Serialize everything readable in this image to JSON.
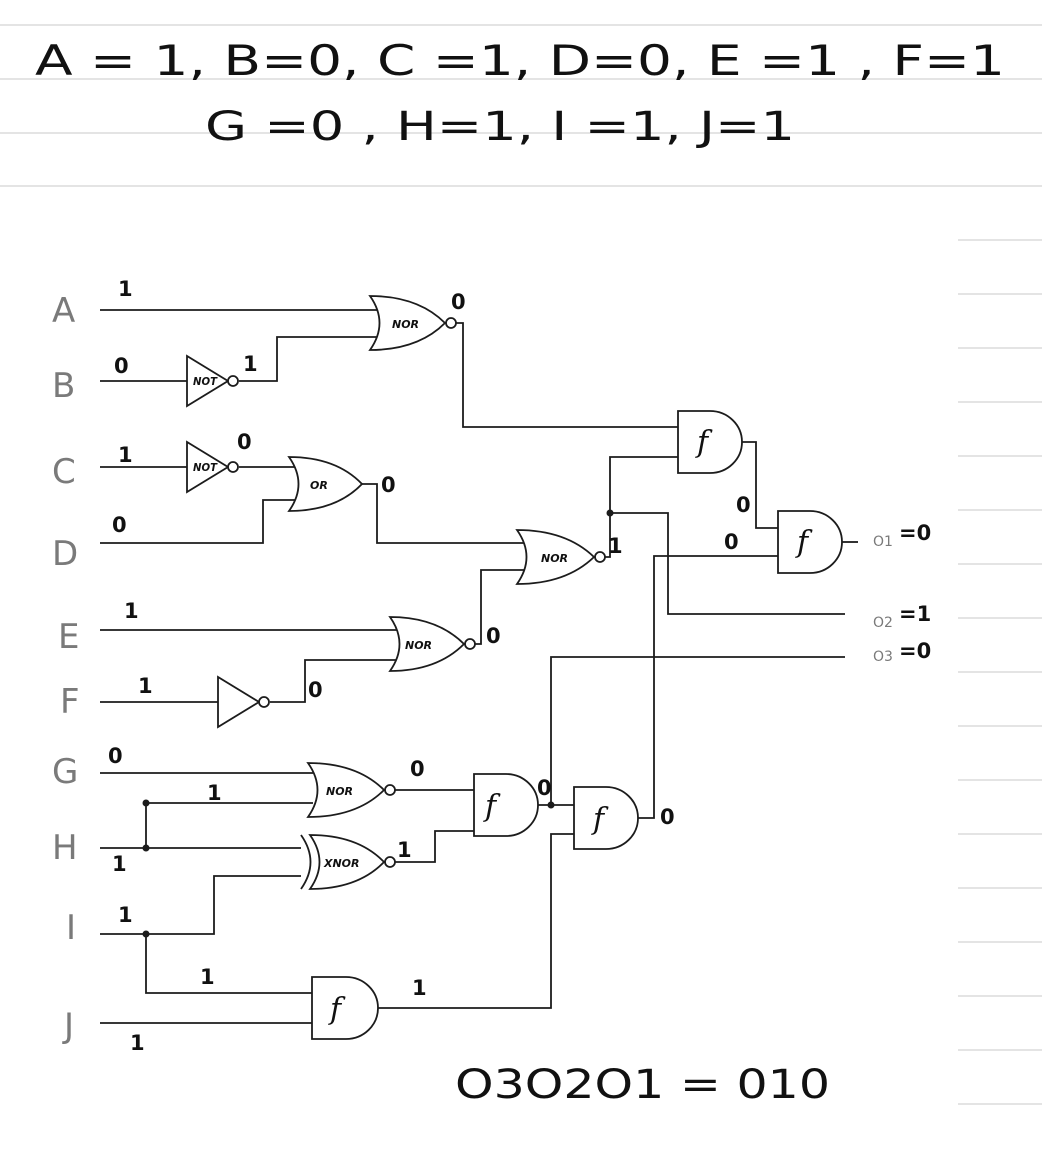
{
  "header": {
    "line1": "A = 1, B=0, C =1, D=0, E =1 , F=1",
    "line2": "G =0 , H=1, I =1, J=1"
  },
  "colors": {
    "ink": "#111111",
    "wire": "#1c1c1c",
    "label_gray": "#7a7a7a",
    "ruled_line": "#d4d4d4"
  },
  "inputs": {
    "A": {
      "name": "A",
      "value": "1"
    },
    "B": {
      "name": "B",
      "value": "0"
    },
    "C": {
      "name": "C",
      "value": "1"
    },
    "D": {
      "name": "D",
      "value": "0"
    },
    "E": {
      "name": "E",
      "value": "1"
    },
    "F": {
      "name": "F",
      "value": "1"
    },
    "G": {
      "name": "G",
      "value": "0"
    },
    "H": {
      "name": "H",
      "value": "1"
    },
    "I": {
      "name": "I",
      "value": "1"
    },
    "J": {
      "name": "J",
      "value": "1"
    }
  },
  "gates": {
    "not_b": {
      "tag": "NOT",
      "out": "1"
    },
    "not_c": {
      "tag": "NOT",
      "out": "0"
    },
    "not_f": {
      "tag": "",
      "out": "0"
    },
    "nor_ab": {
      "tag": "NOR",
      "out": "0"
    },
    "or_cd": {
      "tag": "OR",
      "out": "0"
    },
    "nor_ef": {
      "tag": "NOR",
      "out": "0"
    },
    "nor_mid": {
      "tag": "NOR",
      "out": "1"
    },
    "and_top": {
      "tag": "f",
      "out": "0"
    },
    "and_o1": {
      "tag": "f",
      "in_b": "0"
    },
    "nor_gh": {
      "tag": "NOR",
      "out": "0"
    },
    "xnor_hi": {
      "tag": "XNOR",
      "out": "1"
    },
    "and_gh": {
      "tag": "f",
      "out": "0"
    },
    "and_o3": {
      "tag": "f",
      "out": "0"
    },
    "and_ij": {
      "tag": "f",
      "out": "1"
    }
  },
  "branch_values": {
    "h_branch": "1",
    "i_branch": "1"
  },
  "outputs": {
    "o1": {
      "label": "O1",
      "value": "=0"
    },
    "o2": {
      "label": "O2",
      "value": "=1"
    },
    "o3": {
      "label": "O3",
      "value": "=0"
    }
  },
  "result": "O3O2O1 = 010"
}
